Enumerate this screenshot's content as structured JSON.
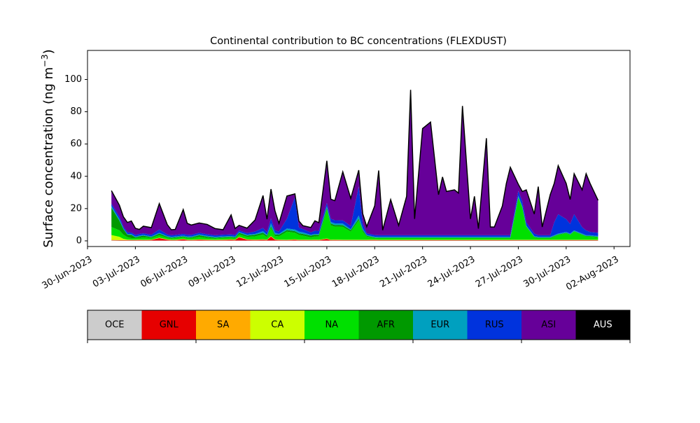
{
  "chart_data": {
    "type": "area",
    "title": "Continental contribution to BC concentrations (FLEXDUST)",
    "ylabel": "Surface concentration (ng m$^{-3}$)",
    "ylabel_main": "Surface concentration (ng m",
    "ylabel_exp": "−3",
    "ylabel_close": ")",
    "xlabel": "",
    "ylim": [
      -3.5,
      118
    ],
    "xlim": [
      "2023-06-30",
      "2023-08-03"
    ],
    "x_ticks": [
      "30-Jun-2023",
      "03-Jul-2023",
      "06-Jul-2023",
      "09-Jul-2023",
      "12-Jul-2023",
      "15-Jul-2023",
      "18-Jul-2023",
      "21-Jul-2023",
      "24-Jul-2023",
      "27-Jul-2023",
      "30-Jul-2023",
      "02-Aug-2023"
    ],
    "x_tick_dates": [
      "2023-06-30",
      "2023-07-03",
      "2023-07-06",
      "2023-07-09",
      "2023-07-12",
      "2023-07-15",
      "2023-07-18",
      "2023-07-21",
      "2023-07-24",
      "2023-07-27",
      "2023-07-30",
      "2023-08-02"
    ],
    "y_ticks": [
      "0",
      "20",
      "40",
      "60",
      "80",
      "100"
    ],
    "y_tick_values": [
      0,
      20,
      40,
      60,
      80,
      100
    ],
    "grid": false,
    "legend_placement": "bottom",
    "legend": [
      {
        "name": "OCE",
        "color": "#cccccc"
      },
      {
        "name": "GNL",
        "color": "#e60000"
      },
      {
        "name": "SA",
        "color": "#ffaa00"
      },
      {
        "name": "CA",
        "color": "#ccff00"
      },
      {
        "name": "NA",
        "color": "#00e000"
      },
      {
        "name": "AFR",
        "color": "#009900"
      },
      {
        "name": "EUR",
        "color": "#00a0bf"
      },
      {
        "name": "RUS",
        "color": "#0033dd"
      },
      {
        "name": "ASI",
        "color": "#660099"
      },
      {
        "name": "AUS",
        "color": "#000000"
      }
    ],
    "total_line_color": "#000000",
    "x": [
      "2023-07-01T12:00",
      "2023-07-02T00:00",
      "2023-07-02T06:00",
      "2023-07-02T12:00",
      "2023-07-02T18:00",
      "2023-07-03T00:00",
      "2023-07-03T06:00",
      "2023-07-03T12:00",
      "2023-07-04T00:00",
      "2023-07-04T12:00",
      "2023-07-05T00:00",
      "2023-07-05T06:00",
      "2023-07-05T12:00",
      "2023-07-06T00:00",
      "2023-07-06T06:00",
      "2023-07-06T12:00",
      "2023-07-07T00:00",
      "2023-07-07T12:00",
      "2023-07-08T00:00",
      "2023-07-08T12:00",
      "2023-07-09T00:00",
      "2023-07-09T06:00",
      "2023-07-09T12:00",
      "2023-07-10T00:00",
      "2023-07-10T12:00",
      "2023-07-11T00:00",
      "2023-07-11T06:00",
      "2023-07-11T12:00",
      "2023-07-11T18:00",
      "2023-07-12T00:00",
      "2023-07-12T12:00",
      "2023-07-13T00:00",
      "2023-07-13T06:00",
      "2023-07-13T12:00",
      "2023-07-14T00:00",
      "2023-07-14T06:00",
      "2023-07-14T12:00",
      "2023-07-15T00:00",
      "2023-07-15T06:00",
      "2023-07-15T12:00",
      "2023-07-16T00:00",
      "2023-07-16T12:00",
      "2023-07-17T00:00",
      "2023-07-17T06:00",
      "2023-07-17T12:00",
      "2023-07-18T00:00",
      "2023-07-18T06:00",
      "2023-07-18T12:00",
      "2023-07-19T00:00",
      "2023-07-19T12:00",
      "2023-07-20T00:00",
      "2023-07-20T06:00",
      "2023-07-20T12:00",
      "2023-07-21T00:00",
      "2023-07-21T12:00",
      "2023-07-22T00:00",
      "2023-07-22T06:00",
      "2023-07-22T12:00",
      "2023-07-23T00:00",
      "2023-07-23T06:00",
      "2023-07-23T12:00",
      "2023-07-24T00:00",
      "2023-07-24T06:00",
      "2023-07-24T12:00",
      "2023-07-25T00:00",
      "2023-07-25T06:00",
      "2023-07-25T12:00",
      "2023-07-26T00:00",
      "2023-07-26T06:00",
      "2023-07-26T12:00",
      "2023-07-27T00:00",
      "2023-07-27T06:00",
      "2023-07-27T12:00",
      "2023-07-28T00:00",
      "2023-07-28T06:00",
      "2023-07-28T12:00",
      "2023-07-29T00:00",
      "2023-07-29T06:00",
      "2023-07-29T12:00",
      "2023-07-30T00:00",
      "2023-07-30T06:00",
      "2023-07-30T12:00",
      "2023-07-31T00:00",
      "2023-07-31T06:00",
      "2023-07-31T12:00",
      "2023-08-01T00:00"
    ],
    "series": [
      {
        "name": "OCE",
        "values": [
          0.3,
          0.2,
          0.2,
          0.2,
          0.2,
          0.2,
          0.2,
          0.2,
          0.2,
          0.2,
          0.2,
          0.2,
          0.2,
          0.2,
          0.2,
          0.2,
          0.2,
          0.2,
          0.2,
          0.2,
          0.2,
          0.2,
          0.2,
          0.2,
          0.2,
          0.2,
          0.2,
          0.2,
          0.2,
          0.2,
          0.2,
          0.2,
          0.2,
          0.2,
          0.2,
          0.2,
          0.2,
          0.2,
          0.2,
          0.2,
          0.2,
          0.2,
          0.2,
          0.2,
          0.2,
          0.2,
          0.2,
          0.2,
          0.2,
          0.2,
          0.2,
          0.2,
          0.2,
          0.2,
          0.2,
          0.2,
          0.2,
          0.2,
          0.2,
          0.2,
          0.2,
          0.2,
          0.2,
          0.2,
          0.2,
          0.2,
          0.2,
          0.2,
          0.2,
          0.2,
          0.2,
          0.2,
          0.2,
          0.2,
          0.2,
          0.2,
          0.2,
          0.2,
          0.2,
          0.2,
          0.2,
          0.2,
          0.2,
          0.2,
          0.2,
          0.2
        ]
      },
      {
        "name": "GNL",
        "values": [
          0.2,
          0.2,
          0.2,
          0.2,
          0.2,
          0.2,
          0.3,
          0.2,
          0.3,
          1.5,
          0.5,
          0.2,
          0.2,
          0.8,
          0.3,
          0.2,
          0.5,
          0.3,
          0.2,
          0.3,
          0.5,
          0.3,
          2.0,
          0.5,
          0.3,
          0.5,
          0.3,
          2.5,
          0.5,
          0.3,
          0.2,
          0.5,
          0.2,
          0.3,
          0.2,
          0.3,
          0.2,
          1.0,
          0.2,
          0.3,
          0.2,
          0.2,
          0.2,
          0.2,
          0.2,
          0.3,
          0.2,
          0.2,
          0.2,
          0.2,
          0.2,
          0.2,
          0.2,
          0.2,
          0.2,
          0.2,
          0.2,
          0.2,
          0.2,
          0.2,
          0.2,
          0.2,
          0.2,
          0.2,
          0.2,
          0.2,
          0.2,
          0.2,
          0.2,
          0.2,
          0.2,
          0.2,
          0.2,
          0.2,
          0.2,
          0.2,
          0.2,
          0.2,
          0.2,
          0.2,
          0.2,
          0.2,
          0.2,
          0.2,
          0.2,
          0.2
        ]
      },
      {
        "name": "SA",
        "values": [
          0.1,
          0.1,
          0.1,
          0.1,
          0.1,
          0.1,
          0.1,
          0.1,
          0.1,
          0.1,
          0.1,
          0.1,
          0.1,
          0.1,
          0.1,
          0.1,
          0.1,
          0.1,
          0.1,
          0.1,
          0.1,
          0.1,
          0.1,
          0.1,
          0.1,
          0.1,
          0.1,
          0.1,
          0.1,
          0.1,
          0.1,
          0.1,
          0.1,
          0.1,
          0.1,
          0.1,
          0.1,
          0.1,
          0.1,
          0.1,
          0.1,
          0.1,
          0.1,
          0.1,
          0.1,
          0.1,
          0.1,
          0.1,
          0.1,
          0.1,
          0.1,
          0.1,
          0.1,
          0.1,
          0.1,
          0.1,
          0.1,
          0.1,
          0.1,
          0.1,
          0.1,
          0.1,
          0.1,
          0.1,
          0.1,
          0.1,
          0.1,
          0.1,
          0.1,
          0.1,
          0.1,
          0.1,
          0.1,
          0.1,
          0.1,
          0.1,
          0.1,
          0.1,
          0.1,
          0.1,
          0.1,
          0.1,
          0.1,
          0.1,
          0.1,
          0.1
        ]
      },
      {
        "name": "CA",
        "values": [
          3.0,
          2.0,
          0.8,
          0.3,
          0.2,
          0.2,
          0.2,
          0.2,
          0.2,
          0.2,
          0.2,
          0.2,
          0.2,
          0.2,
          0.2,
          0.2,
          0.2,
          0.2,
          0.2,
          0.2,
          0.2,
          0.2,
          0.2,
          0.2,
          0.2,
          0.2,
          0.2,
          0.2,
          0.2,
          0.2,
          0.2,
          0.2,
          0.2,
          0.2,
          0.2,
          0.2,
          0.2,
          0.2,
          0.2,
          0.2,
          0.2,
          0.2,
          0.2,
          0.2,
          0.2,
          0.2,
          0.2,
          0.2,
          0.2,
          0.2,
          0.2,
          0.2,
          0.2,
          0.2,
          0.2,
          0.2,
          0.2,
          0.2,
          0.2,
          0.2,
          0.2,
          0.2,
          0.2,
          0.2,
          0.2,
          0.2,
          0.2,
          0.2,
          0.2,
          0.2,
          0.2,
          0.2,
          0.2,
          0.2,
          0.2,
          0.2,
          0.2,
          0.2,
          0.2,
          0.2,
          0.2,
          0.2,
          0.2,
          0.2,
          0.2,
          0.2
        ]
      },
      {
        "name": "NA",
        "values": [
          5.0,
          4.0,
          2.5,
          1.5,
          1.0,
          1.0,
          1.0,
          1.5,
          1.0,
          1.5,
          1.0,
          0.8,
          1.0,
          1.0,
          1.0,
          1.0,
          1.5,
          1.0,
          0.8,
          1.0,
          1.0,
          0.8,
          1.5,
          1.5,
          2.0,
          3.0,
          1.5,
          5.0,
          2.0,
          2.0,
          5.0,
          4.0,
          3.0,
          2.5,
          1.5,
          2.0,
          2.0,
          18.0,
          9.0,
          8.0,
          8.0,
          5.0,
          12.0,
          5.0,
          2.0,
          1.0,
          1.0,
          1.0,
          1.0,
          1.0,
          1.0,
          1.0,
          1.0,
          1.0,
          1.0,
          1.0,
          1.0,
          1.0,
          1.0,
          1.0,
          1.0,
          1.0,
          1.0,
          1.0,
          1.0,
          1.0,
          1.0,
          1.0,
          1.0,
          1.0,
          26.0,
          20.0,
          8.0,
          1.5,
          1.0,
          1.0,
          1.0,
          2.0,
          3.0,
          4.0,
          3.0,
          5.0,
          3.0,
          2.0,
          2.0,
          1.5
        ]
      },
      {
        "name": "AFR",
        "values": [
          12.0,
          6.0,
          3.5,
          1.5,
          2.0,
          0.5,
          1.0,
          1.0,
          0.5,
          1.0,
          0.5,
          0.5,
          0.5,
          0.5,
          0.5,
          0.5,
          1.0,
          0.8,
          0.5,
          0.5,
          0.5,
          0.5,
          1.0,
          0.8,
          1.0,
          1.0,
          1.0,
          1.0,
          1.0,
          1.0,
          1.0,
          1.0,
          1.0,
          1.0,
          1.0,
          1.0,
          1.0,
          1.0,
          1.0,
          1.0,
          1.0,
          1.0,
          1.0,
          1.0,
          0.5,
          0.3,
          0.3,
          0.3,
          0.3,
          0.3,
          0.3,
          0.3,
          0.3,
          0.3,
          0.3,
          0.3,
          0.3,
          0.3,
          0.3,
          0.3,
          0.3,
          0.3,
          0.3,
          0.3,
          0.3,
          0.3,
          0.3,
          0.3,
          0.3,
          0.3,
          0.3,
          0.3,
          0.3,
          0.3,
          0.3,
          0.3,
          0.3,
          0.3,
          0.3,
          0.3,
          0.3,
          0.3,
          0.3,
          0.3,
          0.3,
          0.3
        ]
      },
      {
        "name": "EUR",
        "values": [
          1.0,
          1.0,
          0.5,
          0.5,
          0.5,
          0.5,
          0.5,
          0.5,
          0.5,
          0.5,
          0.5,
          0.5,
          0.5,
          0.5,
          0.5,
          0.5,
          0.5,
          0.5,
          0.5,
          0.5,
          0.5,
          0.5,
          0.5,
          0.5,
          0.5,
          1.0,
          0.5,
          2.0,
          1.0,
          0.5,
          1.0,
          1.0,
          1.0,
          1.0,
          0.5,
          0.5,
          0.5,
          1.0,
          1.0,
          1.0,
          1.0,
          0.5,
          2.0,
          1.0,
          0.5,
          0.5,
          0.5,
          0.5,
          0.5,
          0.5,
          0.5,
          0.5,
          0.5,
          0.5,
          0.5,
          0.5,
          0.5,
          0.5,
          0.5,
          0.5,
          0.5,
          0.5,
          0.5,
          0.5,
          0.5,
          0.5,
          0.5,
          0.5,
          0.5,
          0.5,
          1.0,
          0.5,
          0.5,
          0.5,
          0.5,
          0.5,
          0.5,
          0.5,
          0.5,
          0.5,
          0.5,
          0.5,
          0.5,
          0.5,
          0.5,
          0.5
        ]
      },
      {
        "name": "RUS",
        "values": [
          1.5,
          1.5,
          1.0,
          1.0,
          1.0,
          1.0,
          1.0,
          1.0,
          1.0,
          2.0,
          1.0,
          1.0,
          1.0,
          1.0,
          1.0,
          1.0,
          1.0,
          1.0,
          1.0,
          1.0,
          1.0,
          1.0,
          1.0,
          1.0,
          1.5,
          2.0,
          1.5,
          3.0,
          1.5,
          1.5,
          6.0,
          20.0,
          2.5,
          2.0,
          1.5,
          2.0,
          2.0,
          2.0,
          2.0,
          2.0,
          2.0,
          2.0,
          18.0,
          3.0,
          1.0,
          1.0,
          1.0,
          1.0,
          1.0,
          1.0,
          1.0,
          1.0,
          1.0,
          1.0,
          1.0,
          1.0,
          1.0,
          1.0,
          1.0,
          1.0,
          1.0,
          1.0,
          1.0,
          1.0,
          1.0,
          1.0,
          1.0,
          1.0,
          1.0,
          1.0,
          3.0,
          3.0,
          2.0,
          1.5,
          1.0,
          1.0,
          1.0,
          8.0,
          12.0,
          8.0,
          6.0,
          10.0,
          4.0,
          3.0,
          2.0,
          2.0
        ]
      },
      {
        "name": "ASI",
        "values": [
          7.9,
          7.0,
          6.0,
          6.0,
          7.0,
          4.0,
          2.7,
          4.3,
          4.3,
          16.0,
          6.0,
          3.3,
          3.3,
          15.0,
          7.0,
          6.0,
          6.0,
          6.0,
          4.0,
          3.0,
          12.0,
          4.0,
          3.0,
          3.0,
          7.0,
          20.0,
          8.0,
          18.0,
          12.0,
          5.0,
          14.0,
          2.0,
          4.0,
          2.0,
          3.0,
          6.0,
          5.0,
          26.0,
          12.0,
          12.0,
          30.0,
          17.0,
          10.0,
          6.0,
          4.0,
          18.0,
          40.0,
          3.0,
          22.0,
          6.0,
          24.0,
          90.0,
          10.0,
          66.0,
          70.0,
          25.0,
          36.0,
          27.0,
          28.0,
          26.0,
          80.0,
          10.0,
          24.0,
          4.0,
          60.0,
          5.0,
          5.0,
          18.0,
          32.0,
          42.0,
          4.0,
          6.0,
          20.0,
          12.0,
          30.0,
          5.0,
          25.0,
          24.0,
          30.0,
          22.0,
          15.0,
          25.0,
          23.0,
          35.0,
          30.0,
          20.0
        ]
      },
      {
        "name": "AUS",
        "values": [
          0.1,
          0.1,
          0.1,
          0.1,
          0.1,
          0.1,
          0.1,
          0.1,
          0.1,
          0.1,
          0.1,
          0.1,
          0.1,
          0.1,
          0.1,
          0.1,
          0.1,
          0.1,
          0.1,
          0.1,
          0.1,
          0.1,
          0.1,
          0.1,
          0.1,
          0.1,
          0.1,
          0.1,
          0.1,
          0.1,
          0.1,
          0.1,
          0.1,
          0.1,
          0.1,
          0.1,
          0.1,
          0.1,
          0.1,
          0.1,
          0.1,
          0.1,
          0.1,
          0.1,
          0.1,
          0.1,
          0.1,
          0.1,
          0.1,
          0.1,
          0.1,
          0.1,
          0.1,
          0.1,
          0.1,
          0.1,
          0.1,
          0.1,
          0.1,
          0.1,
          0.1,
          0.1,
          0.1,
          0.1,
          0.1,
          0.1,
          0.1,
          0.1,
          0.1,
          0.1,
          0.1,
          0.1,
          0.1,
          0.1,
          0.1,
          0.1,
          0.1,
          0.1,
          0.1,
          0.1,
          0.1,
          0.1,
          0.1,
          0.1,
          0.1,
          0.1
        ]
      }
    ]
  }
}
